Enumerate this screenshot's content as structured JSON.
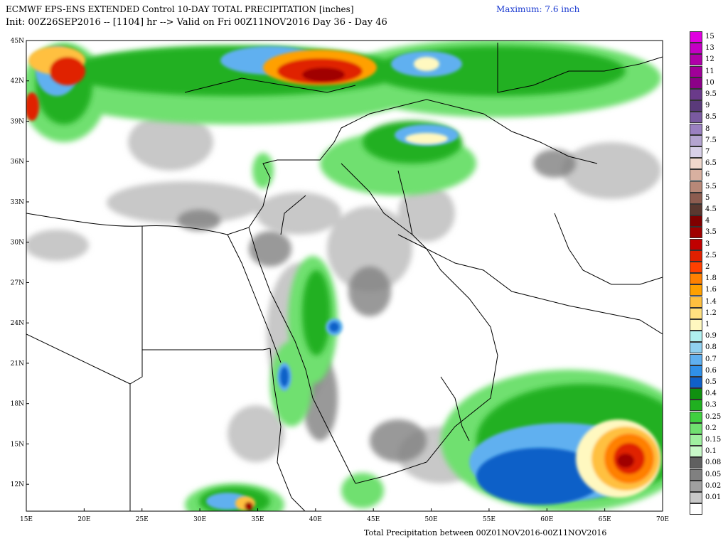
{
  "header": {
    "title_line": "ECMWF EPS-ENS EXTENDED Control 10-DAY TOTAL PRECIPITATION [inches]",
    "init_line": "Init: 00Z26SEP2016 -- [1104] hr --> Valid on Fri 00Z11NOV2016  Day 36 - Day 46",
    "maximum": "Maximum: 7.6 inch"
  },
  "footer": {
    "caption": "Total Precipitation between 00Z01NOV2016-00Z11NOV2016"
  },
  "map": {
    "lat_labels": [
      "45N",
      "42N",
      "39N",
      "36N",
      "33N",
      "30N",
      "27N",
      "24N",
      "21N",
      "18N",
      "15N",
      "12N"
    ],
    "lon_labels": [
      "15E",
      "20E",
      "25E",
      "30E",
      "35E",
      "40E",
      "45E",
      "50E",
      "55E",
      "60E",
      "65E",
      "70E"
    ],
    "lat_range": [
      10,
      45
    ],
    "lon_range": [
      15,
      70
    ]
  },
  "colorbar": {
    "levels": [
      {
        "label": "15",
        "color": "#e000e0"
      },
      {
        "label": "13",
        "color": "#c400c4"
      },
      {
        "label": "12",
        "color": "#b000a8"
      },
      {
        "label": "11",
        "color": "#a00098"
      },
      {
        "label": "10",
        "color": "#8c0088"
      },
      {
        "label": "9.5",
        "color": "#6a3a8a"
      },
      {
        "label": "9",
        "color": "#5a3a7a"
      },
      {
        "label": "8.5",
        "color": "#7a5aa0"
      },
      {
        "label": "8",
        "color": "#9a80c0"
      },
      {
        "label": "7.5",
        "color": "#b4a4d0"
      },
      {
        "label": "7",
        "color": "#d8d0e8"
      },
      {
        "label": "6.5",
        "color": "#f0d8cc"
      },
      {
        "label": "6",
        "color": "#d8b0a0"
      },
      {
        "label": "5.5",
        "color": "#b88878"
      },
      {
        "label": "5",
        "color": "#8c5c50"
      },
      {
        "label": "4.5",
        "color": "#5a3830"
      },
      {
        "label": "4",
        "color": "#800000"
      },
      {
        "label": "3.5",
        "color": "#a00000"
      },
      {
        "label": "3",
        "color": "#c00000"
      },
      {
        "label": "2.5",
        "color": "#e02000"
      },
      {
        "label": "2",
        "color": "#ff4000"
      },
      {
        "label": "1.8",
        "color": "#ff8000"
      },
      {
        "label": "1.6",
        "color": "#ffa000"
      },
      {
        "label": "1.4",
        "color": "#ffc040"
      },
      {
        "label": "1.2",
        "color": "#ffe080"
      },
      {
        "label": "1",
        "color": "#fff8c0"
      },
      {
        "label": "0.9",
        "color": "#b0f0f0"
      },
      {
        "label": "0.8",
        "color": "#90d0f0"
      },
      {
        "label": "0.7",
        "color": "#60b0f0"
      },
      {
        "label": "0.6",
        "color": "#3090e8"
      },
      {
        "label": "0.5",
        "color": "#1060c8"
      },
      {
        "label": "0.4",
        "color": "#109010"
      },
      {
        "label": "0.3",
        "color": "#20b020"
      },
      {
        "label": "0.25",
        "color": "#40d040"
      },
      {
        "label": "0.2",
        "color": "#70e070"
      },
      {
        "label": "0.15",
        "color": "#a0f0a0"
      },
      {
        "label": "0.1",
        "color": "#c8f8c8"
      },
      {
        "label": "0.08",
        "color": "#606060"
      },
      {
        "label": "0.05",
        "color": "#808080"
      },
      {
        "label": "0.02",
        "color": "#a0a0a0"
      },
      {
        "label": "0.01",
        "color": "#c8c8c8"
      },
      {
        "label": "",
        "color": "#ffffff"
      }
    ]
  }
}
